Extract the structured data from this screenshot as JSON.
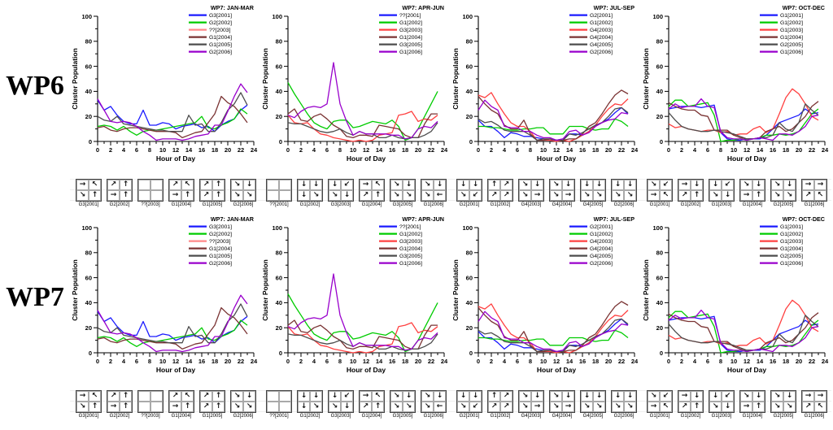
{
  "figure": {
    "row_labels": [
      "WP6",
      "WP7"
    ]
  },
  "palette": {
    "blue": "#1A1AFF",
    "green": "#00CC00",
    "red": "#FF4040",
    "salmon": "#FF8888",
    "wine": "#7A3333",
    "gray": "#4D4D4D",
    "purple": "#9900CC",
    "axis": "#000000"
  },
  "chart_data": [
    {
      "type": "line",
      "title": "WP7: JAN-MAR",
      "xlabel": "Hour of Day",
      "ylabel": "Cluster Population",
      "xlim": [
        0,
        24
      ],
      "ylim": [
        0,
        100
      ],
      "xticks": [
        0,
        2,
        4,
        6,
        8,
        10,
        12,
        14,
        16,
        18,
        20,
        22,
        24
      ],
      "yticks": [
        0,
        20,
        40,
        60,
        80,
        100
      ],
      "x_minor_step": 1,
      "y_minor_step": 10,
      "grid": false,
      "legend_position": "top-right",
      "x": [
        0,
        1,
        2,
        3,
        4,
        5,
        6,
        7,
        8,
        9,
        10,
        11,
        12,
        13,
        14,
        15,
        16,
        17,
        18,
        19,
        20,
        21,
        22,
        23
      ],
      "series": [
        {
          "name": "G3[2001]",
          "color": "#1A1AFF",
          "values": [
            33,
            25,
            28,
            21,
            16,
            14,
            14,
            25,
            13,
            13,
            15,
            14,
            10,
            12,
            13,
            14,
            11,
            12,
            8,
            13,
            16,
            18,
            25,
            29
          ]
        },
        {
          "name": "G2[2002]",
          "color": "#00CC00",
          "values": [
            12,
            13,
            12,
            9,
            12,
            8,
            5,
            8,
            9,
            9,
            10,
            11,
            12,
            13,
            14,
            15,
            20,
            11,
            10,
            13,
            15,
            18,
            26,
            22
          ]
        },
        {
          "name": "??[2003]",
          "color": "#FF8888",
          "values": []
        },
        {
          "name": "G1[2004]",
          "color": "#7A3333",
          "values": [
            11,
            12,
            9,
            8,
            10,
            11,
            11,
            10,
            9,
            8,
            8,
            8,
            7,
            3,
            5,
            7,
            8,
            15,
            22,
            36,
            31,
            28,
            22,
            15
          ]
        },
        {
          "name": "G1[2005]",
          "color": "#4D4D4D",
          "values": [
            20,
            17,
            16,
            20,
            14,
            13,
            12,
            11,
            10,
            9,
            9,
            8,
            8,
            8,
            21,
            13,
            14,
            8,
            8,
            15,
            25,
            30,
            39,
            29
          ]
        },
        {
          "name": "G2[2006]",
          "color": "#9900CC",
          "values": [
            34,
            25,
            16,
            15,
            16,
            15,
            12,
            8,
            5,
            1,
            2,
            2,
            2,
            1,
            2,
            4,
            5,
            6,
            13,
            13,
            24,
            36,
            46,
            39
          ]
        }
      ],
      "glyphs": [
        {
          "label": "G3[2001]",
          "arrows": [
            "→",
            "↖",
            "↘",
            "↑"
          ]
        },
        {
          "label": "G2[2002]",
          "arrows": [
            "↗",
            "↑",
            "→",
            "↑"
          ]
        },
        {
          "label": "??[2003]",
          "arrows": [
            "",
            "",
            "",
            ""
          ]
        },
        {
          "label": "G1[2004]",
          "arrows": [
            "↗",
            "↖",
            "→",
            "↑"
          ]
        },
        {
          "label": "G1[2005]",
          "arrows": [
            "↗",
            "↑",
            "↗",
            "↑"
          ]
        },
        {
          "label": "G2[2006]",
          "arrows": [
            "↘",
            "↓",
            "↘",
            "↘"
          ]
        }
      ]
    },
    {
      "type": "line",
      "title": "WP7: APR-JUN",
      "xlabel": "Hour of Day",
      "ylabel": "Cluster Population",
      "xlim": [
        0,
        24
      ],
      "ylim": [
        0,
        100
      ],
      "xticks": [
        0,
        2,
        4,
        6,
        8,
        10,
        12,
        14,
        16,
        18,
        20,
        22,
        24
      ],
      "yticks": [
        0,
        20,
        40,
        60,
        80,
        100
      ],
      "x_minor_step": 1,
      "y_minor_step": 10,
      "grid": false,
      "legend_position": "top-right",
      "x": [
        0,
        1,
        2,
        3,
        4,
        5,
        6,
        7,
        8,
        9,
        10,
        11,
        12,
        13,
        14,
        15,
        16,
        17,
        18,
        19,
        20,
        21,
        22,
        23
      ],
      "series": [
        {
          "name": "??[2001]",
          "color": "#1A1AFF",
          "values": []
        },
        {
          "name": "G1[2002]",
          "color": "#00CC00",
          "values": [
            47,
            38,
            30,
            22,
            15,
            12,
            10,
            16,
            17,
            17,
            11,
            12,
            14,
            16,
            15,
            14,
            17,
            12,
            1,
            3,
            10,
            20,
            30,
            40
          ]
        },
        {
          "name": "G3[2003]",
          "color": "#FF4040",
          "values": [
            21,
            15,
            14,
            15,
            10,
            6,
            5,
            3,
            2,
            1,
            0,
            1,
            0,
            1,
            5,
            6,
            7,
            21,
            22,
            24,
            16,
            18,
            17,
            21
          ]
        },
        {
          "name": "G1[2004]",
          "color": "#7A3333",
          "values": [
            22,
            26,
            17,
            16,
            20,
            22,
            18,
            13,
            10,
            4,
            3,
            5,
            5,
            4,
            13,
            12,
            11,
            10,
            5,
            3,
            3,
            14,
            22,
            22
          ]
        },
        {
          "name": "G3[2005]",
          "color": "#4D4D4D",
          "values": [
            15,
            14,
            14,
            12,
            10,
            8,
            7,
            8,
            10,
            7,
            5,
            8,
            6,
            6,
            3,
            3,
            5,
            3,
            2,
            3,
            3,
            5,
            8,
            15
          ]
        },
        {
          "name": "G1[2006]",
          "color": "#9900CC",
          "values": [
            21,
            19,
            24,
            27,
            28,
            27,
            30,
            63,
            30,
            16,
            5,
            8,
            6,
            6,
            6,
            6,
            5,
            5,
            2,
            3,
            10,
            12,
            11,
            16
          ]
        }
      ],
      "glyphs": [
        {
          "label": "??[2001]",
          "arrows": [
            "",
            "",
            "",
            ""
          ]
        },
        {
          "label": "G1[2002]",
          "arrows": [
            "↓",
            "↓",
            "↓",
            "↘"
          ]
        },
        {
          "label": "G3[2003]",
          "arrows": [
            "↓",
            "↙",
            "↘",
            "↓"
          ]
        },
        {
          "label": "G1[2004]",
          "arrows": [
            "→",
            "↖",
            "↗",
            "↑"
          ]
        },
        {
          "label": "G3[2005]",
          "arrows": [
            "↘",
            "↓",
            "↘",
            "↘"
          ]
        },
        {
          "label": "G1[2006]",
          "arrows": [
            "↘",
            "↓",
            "↘",
            "←"
          ]
        }
      ]
    },
    {
      "type": "line",
      "title": "WP7: JUL-SEP",
      "xlabel": "Hour of Day",
      "ylabel": "Cluster Population",
      "xlim": [
        0,
        24
      ],
      "ylim": [
        0,
        100
      ],
      "xticks": [
        0,
        2,
        4,
        6,
        8,
        10,
        12,
        14,
        16,
        18,
        20,
        22,
        24
      ],
      "yticks": [
        0,
        20,
        40,
        60,
        80,
        100
      ],
      "x_minor_step": 1,
      "y_minor_step": 10,
      "grid": false,
      "legend_position": "top-right",
      "x": [
        0,
        1,
        2,
        3,
        4,
        5,
        6,
        7,
        8,
        9,
        10,
        11,
        12,
        13,
        14,
        15,
        16,
        17,
        18,
        19,
        20,
        21,
        22,
        23
      ],
      "series": [
        {
          "name": "G2[2001]",
          "color": "#1A1AFF",
          "values": [
            17,
            12,
            12,
            8,
            3,
            7,
            6,
            4,
            4,
            3,
            2,
            1,
            1,
            2,
            6,
            6,
            5,
            8,
            13,
            15,
            18,
            23,
            27,
            22
          ]
        },
        {
          "name": "G1[2002]",
          "color": "#00CC00",
          "values": [
            12,
            12,
            11,
            11,
            10,
            9,
            9,
            10,
            10,
            11,
            11,
            6,
            6,
            6,
            12,
            12,
            12,
            10,
            9,
            10,
            10,
            18,
            16,
            12
          ]
        },
        {
          "name": "G4[2003]",
          "color": "#FF4040",
          "values": [
            37,
            35,
            39,
            30,
            22,
            15,
            12,
            12,
            8,
            1,
            1,
            1,
            0,
            1,
            0,
            2,
            5,
            8,
            13,
            20,
            26,
            30,
            29,
            34
          ]
        },
        {
          "name": "G4[2004]",
          "color": "#7A3333",
          "values": [
            36,
            30,
            25,
            22,
            13,
            10,
            10,
            17,
            6,
            1,
            1,
            2,
            1,
            1,
            2,
            2,
            6,
            12,
            15,
            22,
            30,
            37,
            41,
            38
          ]
        },
        {
          "name": "G4[2005]",
          "color": "#4D4D4D",
          "values": [
            18,
            15,
            16,
            13,
            9,
            8,
            8,
            8,
            5,
            1,
            2,
            2,
            1,
            1,
            6,
            5,
            7,
            10,
            13,
            15,
            20,
            26,
            27,
            23
          ]
        },
        {
          "name": "G2[2006]",
          "color": "#9900CC",
          "values": [
            25,
            33,
            28,
            25,
            12,
            11,
            11,
            8,
            8,
            5,
            3,
            3,
            1,
            2,
            8,
            9,
            5,
            7,
            12,
            15,
            17,
            18,
            23,
            22
          ]
        }
      ],
      "glyphs": [
        {
          "label": "G2[2001]",
          "arrows": [
            "↓",
            "↓",
            "↘",
            "↙"
          ]
        },
        {
          "label": "G1[2002]",
          "arrows": [
            "↑",
            "↗",
            "↗",
            "↗"
          ]
        },
        {
          "label": "G4[2003]",
          "arrows": [
            "↘",
            "↓",
            "↘",
            "→"
          ]
        },
        {
          "label": "G4[2004]",
          "arrows": [
            "↘",
            "↓",
            "↘",
            "→"
          ]
        },
        {
          "label": "G4[2005]",
          "arrows": [
            "↓",
            "↓",
            "↘",
            "↘"
          ]
        },
        {
          "label": "G2[2006]",
          "arrows": [
            "↓",
            "↓",
            "↘",
            "↘"
          ]
        }
      ]
    },
    {
      "type": "line",
      "title": "WP7: OCT-DEC",
      "xlabel": "Hour of Day",
      "ylabel": "Cluster Population",
      "xlim": [
        0,
        24
      ],
      "ylim": [
        0,
        100
      ],
      "xticks": [
        0,
        2,
        4,
        6,
        8,
        10,
        12,
        14,
        16,
        18,
        20,
        22,
        24
      ],
      "yticks": [
        0,
        20,
        40,
        60,
        80,
        100
      ],
      "x_minor_step": 1,
      "y_minor_step": 10,
      "grid": false,
      "legend_position": "top-right",
      "x": [
        0,
        1,
        2,
        3,
        4,
        5,
        6,
        7,
        8,
        9,
        10,
        11,
        12,
        13,
        14,
        15,
        16,
        17,
        18,
        19,
        20,
        21,
        22,
        23
      ],
      "series": [
        {
          "name": "G1[2001]",
          "color": "#1A1AFF",
          "values": [
            26,
            27,
            28,
            28,
            28,
            27,
            28,
            29,
            7,
            2,
            1,
            1,
            2,
            2,
            2,
            5,
            10,
            15,
            17,
            19,
            21,
            26,
            22,
            23
          ]
        },
        {
          "name": "G1[2002]",
          "color": "#00CC00",
          "values": [
            28,
            33,
            33,
            28,
            29,
            30,
            31,
            21,
            0,
            1,
            1,
            2,
            1,
            2,
            3,
            5,
            5,
            6,
            5,
            6,
            8,
            15,
            22,
            26
          ]
        },
        {
          "name": "G1[2003]",
          "color": "#FF4040",
          "values": [
            14,
            11,
            12,
            10,
            9,
            8,
            9,
            9,
            7,
            8,
            5,
            6,
            6,
            10,
            12,
            7,
            10,
            22,
            35,
            42,
            38,
            30,
            20,
            17
          ]
        },
        {
          "name": "G1[2004]",
          "color": "#7A3333",
          "values": [
            31,
            28,
            26,
            25,
            25,
            21,
            20,
            9,
            9,
            9,
            5,
            3,
            2,
            2,
            3,
            8,
            10,
            12,
            8,
            10,
            15,
            20,
            28,
            32
          ]
        },
        {
          "name": "G2[2005]",
          "color": "#4D4D4D",
          "values": [
            23,
            17,
            12,
            10,
            9,
            8,
            8,
            9,
            8,
            7,
            6,
            4,
            2,
            2,
            3,
            3,
            5,
            15,
            10,
            8,
            15,
            30,
            25,
            21
          ]
        },
        {
          "name": "G1[2006]",
          "color": "#9900CC",
          "values": [
            26,
            30,
            27,
            28,
            28,
            34,
            28,
            27,
            8,
            3,
            2,
            2,
            1,
            2,
            3,
            2,
            1,
            6,
            6,
            5,
            8,
            12,
            20,
            21
          ]
        }
      ],
      "glyphs": [
        {
          "label": "G1[2001]",
          "arrows": [
            "↘",
            "↙",
            "→",
            "↖"
          ]
        },
        {
          "label": "G1[2002]",
          "arrows": [
            "→",
            "↓",
            "↗",
            "↑"
          ]
        },
        {
          "label": "G1[2003]",
          "arrows": [
            "↓",
            "↙",
            "↘",
            "↓"
          ]
        },
        {
          "label": "G1[2004]",
          "arrows": [
            "↘",
            "↓",
            "→",
            "↑"
          ]
        },
        {
          "label": "G2[2005]",
          "arrows": [
            "↘",
            "↓",
            "↘",
            "↘"
          ]
        },
        {
          "label": "G1[2006]",
          "arrows": [
            "→",
            "→",
            "↗",
            "↖"
          ]
        }
      ]
    }
  ]
}
